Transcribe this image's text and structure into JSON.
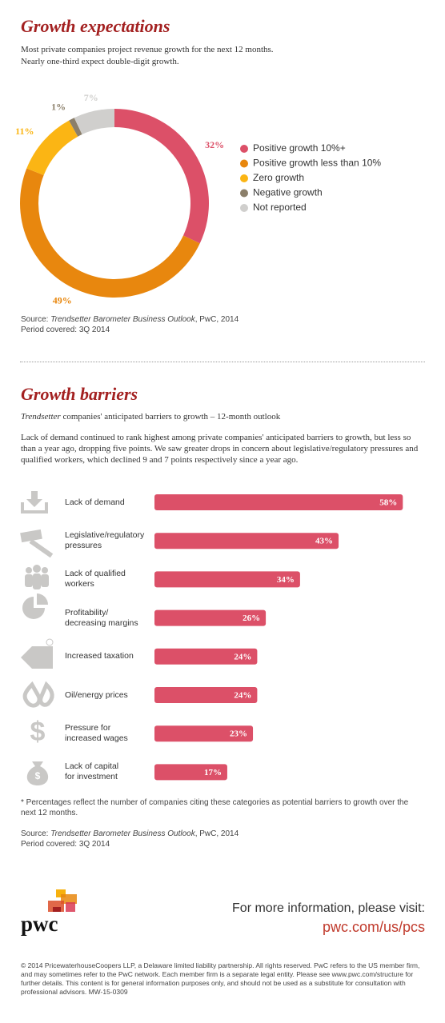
{
  "chart_data": [
    {
      "type": "pie",
      "donut": true,
      "title": "Growth expectations",
      "subtitle": [
        "Most private companies project revenue growth for the next 12 months.",
        "Nearly one-third expect double-digit growth."
      ],
      "categories": [
        "Positive growth 10%+",
        "Positive growth less than 10%",
        "Zero growth",
        "Negative growth",
        "Not reported"
      ],
      "values": [
        32,
        49,
        11,
        1,
        7
      ],
      "value_labels": [
        "32%",
        "49%",
        "11%",
        "1%",
        "7%"
      ],
      "colors": [
        "#dc5068",
        "#e8870e",
        "#fbb514",
        "#8b7f6a",
        "#d0cfcd"
      ],
      "source": {
        "prefix": "Source:",
        "title": "Trendsetter Barometer Business Outlook",
        "suffix": ", PwC, 2014"
      },
      "period": "Period covered: 3Q 2014"
    },
    {
      "type": "bar",
      "orientation": "horizontal",
      "title": "Growth barriers",
      "subtitle": {
        "italic": "Trendsetter",
        "rest": "companies' anticipated barriers to growth – 12-month outlook"
      },
      "description": "Lack of demand continued to rank highest among private companies' anticipated barriers to growth, but less so than a year ago, dropping five points. We saw greater drops in concern about legislative/regulatory pressures and qualified workers, which declined 9 and 7 points respectively since a year ago.",
      "categories": [
        "Lack of demand",
        "Legislative/regulatory\npressures",
        "Lack of qualified\nworkers",
        "Profitability/\ndecreasing margins",
        "Increased taxation",
        "Oil/energy prices",
        "Pressure for\nincreased wages",
        "Lack of capital\nfor investment"
      ],
      "values": [
        58,
        43,
        34,
        26,
        24,
        24,
        23,
        17
      ],
      "value_labels": [
        "58%",
        "43%",
        "34%",
        "26%",
        "24%",
        "24%",
        "23%",
        "17%"
      ],
      "color": "#dc5068",
      "footnote": "* Percentages reflect the number of companies citing these categories as potential barriers to growth over the next 12 months.",
      "source": {
        "prefix": "Source:",
        "title": "Trendsetter Barometer Business Outlook",
        "suffix": ", PwC, 2014"
      },
      "period": "Period covered: 3Q 2014"
    }
  ],
  "footer": {
    "logo": "pwc",
    "cta": "For more information, please visit:",
    "link": "pwc.com/us/pcs",
    "copyright": "© 2014 PricewaterhouseCoopers LLP, a Delaware limited liability partnership. All rights reserved. PwC refers to the US member firm, and may sometimes refer to the PwC network. Each member firm is a separate legal entity. Please see www.pwc.com/structure for further details. This content is for general information purposes only, and should not be used as a substitute for consultation with professional advisors. MW-15-0309"
  }
}
